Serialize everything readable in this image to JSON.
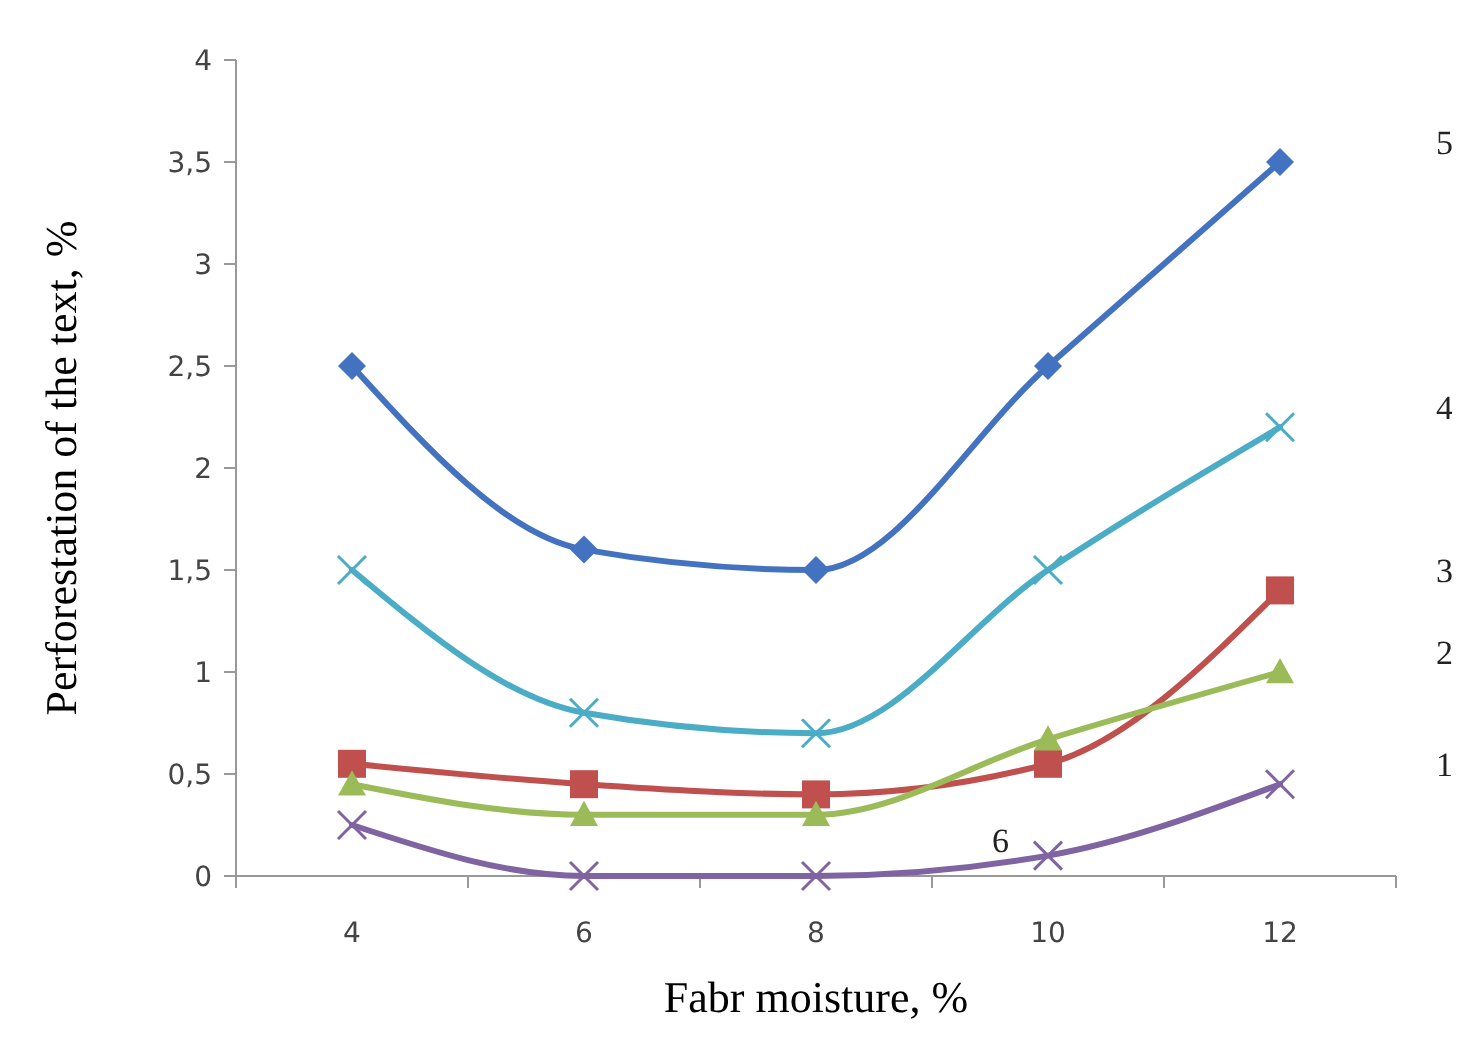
{
  "chart_data": {
    "type": "line",
    "xlabel": "Fabr moisture, %",
    "ylabel": "Perforestation of the text, %",
    "categories": [
      "4",
      "6",
      "8",
      "10",
      "12"
    ],
    "ylim": [
      0,
      4
    ],
    "yticks": [
      0,
      {
        "value": 0.5,
        "label": "0,5"
      },
      1,
      {
        "value": 1.5,
        "label": "1,5"
      },
      2,
      {
        "value": 2.5,
        "label": "2,5"
      },
      3,
      {
        "value": 3.5,
        "label": "3,5"
      },
      4
    ],
    "grid": false,
    "series": [
      {
        "name": "5",
        "color": "#4372c0",
        "marker": "diamond",
        "values": [
          2.5,
          1.6,
          1.5,
          2.5,
          3.5
        ]
      },
      {
        "name": "4",
        "color": "#4bacc6",
        "marker": "cross",
        "values": [
          1.5,
          0.8,
          0.7,
          1.5,
          2.2
        ]
      },
      {
        "name": "3",
        "color": "#c0504d",
        "marker": "square",
        "values": [
          0.55,
          0.45,
          0.4,
          0.55,
          1.4
        ]
      },
      {
        "name": "2",
        "color": "#9bbb59",
        "marker": "triangle",
        "values": [
          0.45,
          0.3,
          0.3,
          0.67,
          1.0
        ]
      },
      {
        "name": "1",
        "color": "#8064a2",
        "marker": "cross",
        "values": [
          0.25,
          0,
          0,
          0.1,
          0.45
        ]
      }
    ],
    "annotations": [
      {
        "text": "6",
        "x": "10",
        "y": 0.1
      }
    ]
  }
}
